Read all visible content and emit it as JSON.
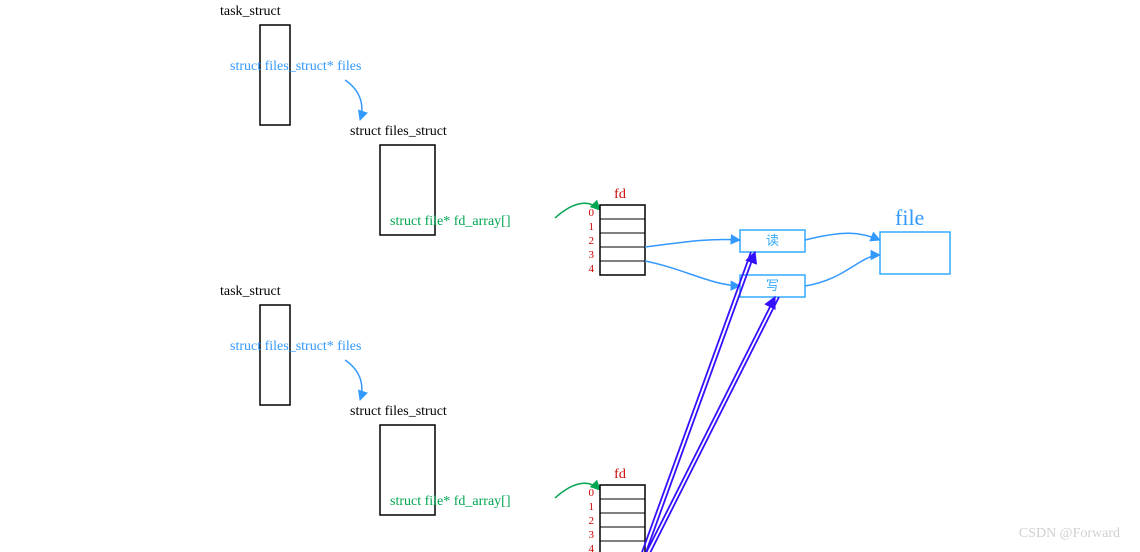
{
  "colors": {
    "black": "#000000",
    "pointer": "#3399ff",
    "field": "#00a651",
    "fdlabel": "#cc0000",
    "file": "#3399ff",
    "box": "#33aaff",
    "arrowBlue": "#3311ff",
    "watermark": "#d0d0d0"
  },
  "labels": {
    "task_struct": "task_struct",
    "files_ptr": "struct files_struct* files",
    "files_struct": "struct files_struct",
    "fd_array": "struct file* fd_array[]",
    "fd": "fd",
    "read": "读",
    "write": "写",
    "file": "file",
    "watermark": "CSDN @Forward"
  },
  "fd_indices": [
    "0",
    "1",
    "2",
    "3",
    "4"
  ],
  "font": {
    "label": 14,
    "small": 11,
    "file": 22
  }
}
